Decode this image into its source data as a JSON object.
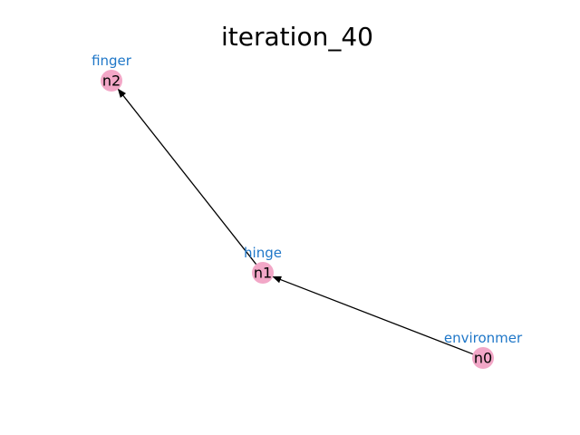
{
  "title": "iteration_40",
  "colors": {
    "node_fill": "#f2a7c7",
    "label": "#1f77c8",
    "edge": "#000000",
    "background": "#ffffff"
  },
  "nodes": [
    {
      "id": "n0",
      "label": "environmer"
    },
    {
      "id": "n1",
      "label": "hinge"
    },
    {
      "id": "n2",
      "label": "finger"
    }
  ],
  "edges": [
    {
      "from": "n0",
      "to": "n1"
    },
    {
      "from": "n1",
      "to": "n2"
    }
  ]
}
